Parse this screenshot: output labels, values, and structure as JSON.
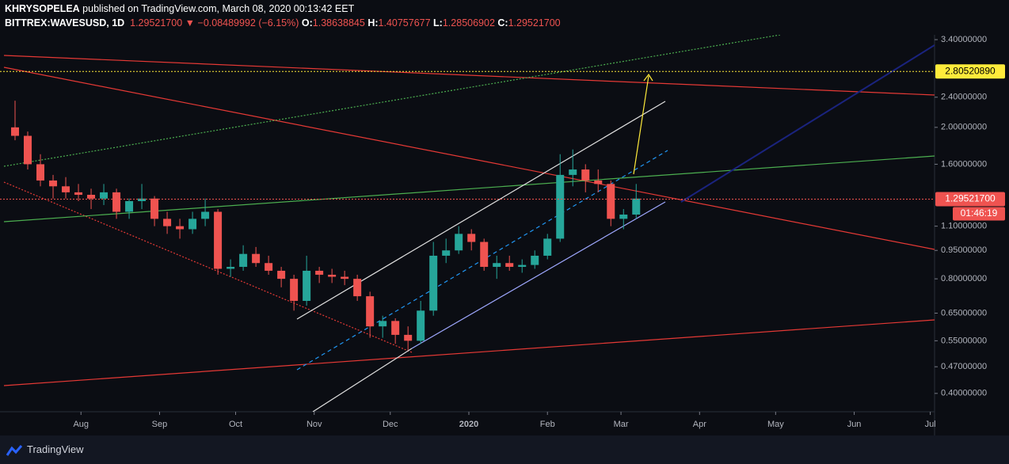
{
  "header": {
    "author": "KHRYSOPELEA",
    "published": " published on TradingView.com, March 08, 2020 00:13:42 EET",
    "symbol": "BITTREX:WAVESUSD, 1D",
    "last": "1.29521700",
    "arrow": "▼",
    "change": "−0.08489992 (−6.15%)",
    "ohlc": [
      {
        "label": "O:",
        "value": "1.38638845"
      },
      {
        "label": "H:",
        "value": "1.40757677"
      },
      {
        "label": "L:",
        "value": "1.28506902"
      },
      {
        "label": "C:",
        "value": "1.29521700"
      }
    ]
  },
  "footer": {
    "brand": "TradingView"
  },
  "chart_data": {
    "type": "candlestick",
    "log_scale": true,
    "grid": false,
    "up_color": "#26a69a",
    "down_color": "#ef5350",
    "x": [
      5,
      10,
      15,
      20,
      25,
      30,
      35,
      40,
      45,
      50,
      55,
      60,
      65,
      70,
      75,
      80,
      85,
      90,
      95,
      100,
      105,
      110,
      115,
      120,
      125,
      130,
      135,
      140,
      145,
      150,
      155,
      160,
      165,
      170,
      175,
      180,
      185,
      190,
      195,
      200,
      205,
      210,
      215,
      220,
      225,
      230,
      235,
      240,
      245,
      250
    ],
    "open": [
      2.0,
      1.9,
      1.6,
      1.45,
      1.4,
      1.35,
      1.33,
      1.3,
      1.35,
      1.2,
      1.28,
      1.3,
      1.15,
      1.1,
      1.08,
      1.15,
      1.2,
      0.85,
      0.86,
      0.93,
      0.88,
      0.84,
      0.8,
      0.7,
      0.84,
      0.82,
      0.81,
      0.8,
      0.72,
      0.6,
      0.62,
      0.57,
      0.55,
      0.66,
      0.92,
      0.95,
      1.05,
      1.0,
      0.86,
      0.88,
      0.86,
      0.87,
      0.92,
      1.02,
      1.5,
      1.55,
      1.45,
      1.42,
      1.15,
      1.18
    ],
    "high": [
      2.35,
      1.95,
      1.7,
      1.5,
      1.48,
      1.42,
      1.38,
      1.42,
      1.38,
      1.3,
      1.42,
      1.32,
      1.2,
      1.15,
      1.2,
      1.3,
      1.22,
      0.9,
      0.98,
      0.97,
      0.92,
      0.86,
      0.82,
      0.92,
      0.86,
      0.85,
      0.84,
      0.82,
      0.74,
      0.64,
      0.63,
      0.6,
      0.7,
      1.0,
      1.02,
      1.1,
      1.08,
      1.02,
      0.92,
      0.92,
      0.9,
      0.95,
      1.05,
      1.7,
      1.75,
      1.6,
      1.55,
      1.45,
      1.22,
      1.42
    ],
    "low": [
      1.85,
      1.55,
      1.4,
      1.3,
      1.3,
      1.28,
      1.22,
      1.25,
      1.15,
      1.15,
      1.22,
      1.1,
      1.05,
      1.02,
      1.05,
      1.1,
      0.82,
      0.81,
      0.84,
      0.86,
      0.82,
      0.76,
      0.66,
      0.68,
      0.78,
      0.78,
      0.77,
      0.7,
      0.56,
      0.56,
      0.54,
      0.52,
      0.54,
      0.64,
      0.88,
      0.93,
      0.95,
      0.84,
      0.8,
      0.84,
      0.83,
      0.85,
      0.9,
      1.0,
      1.4,
      1.35,
      1.35,
      1.1,
      1.08,
      1.15
    ],
    "close": [
      1.9,
      1.6,
      1.45,
      1.4,
      1.35,
      1.33,
      1.3,
      1.35,
      1.2,
      1.28,
      1.3,
      1.15,
      1.1,
      1.08,
      1.15,
      1.2,
      0.85,
      0.86,
      0.93,
      0.88,
      0.84,
      0.8,
      0.7,
      0.84,
      0.82,
      0.81,
      0.8,
      0.72,
      0.6,
      0.62,
      0.57,
      0.55,
      0.66,
      0.92,
      0.95,
      1.05,
      1.0,
      0.86,
      0.88,
      0.86,
      0.87,
      0.92,
      1.02,
      1.5,
      1.55,
      1.45,
      1.42,
      1.15,
      1.18,
      1.3
    ],
    "xlim": [
      0,
      368
    ],
    "xticks": [
      {
        "value": 31,
        "label": "Aug"
      },
      {
        "value": 62,
        "label": "Sep"
      },
      {
        "value": 92,
        "label": "Oct"
      },
      {
        "value": 123,
        "label": "Nov"
      },
      {
        "value": 153,
        "label": "Dec"
      },
      {
        "value": 184,
        "label": "2020"
      },
      {
        "value": 215,
        "label": "Feb"
      },
      {
        "value": 244,
        "label": "Mar"
      },
      {
        "value": 275,
        "label": "Apr"
      },
      {
        "value": 305,
        "label": "May"
      },
      {
        "value": 336,
        "label": "Jun"
      },
      {
        "value": 366,
        "label": "Jul"
      }
    ],
    "ylim": [
      0.358,
      3.5
    ],
    "yticks": [
      {
        "value": 3.4,
        "label": "3.40000000"
      },
      {
        "value": 2.4,
        "label": "2.40000000"
      },
      {
        "value": 2.0,
        "label": "2.00000000"
      },
      {
        "value": 1.6,
        "label": "1.60000000"
      },
      {
        "value": 1.1,
        "label": "1.10000000"
      },
      {
        "value": 0.95,
        "label": "0.95000000"
      },
      {
        "value": 0.8,
        "label": "0.80000000"
      },
      {
        "value": 0.65,
        "label": "0.65000000"
      },
      {
        "value": 0.55,
        "label": "0.55000000"
      },
      {
        "value": 0.47,
        "label": "0.47000000"
      },
      {
        "value": 0.4,
        "label": "0.40000000"
      }
    ],
    "price_lines": [
      {
        "value": 2.8052089,
        "label": "2.80520890",
        "color": "#ffeb3b"
      },
      {
        "value": 1.295217,
        "label": "1.29521700",
        "color": "#ef5350"
      }
    ],
    "countdown": "01:46:19"
  }
}
